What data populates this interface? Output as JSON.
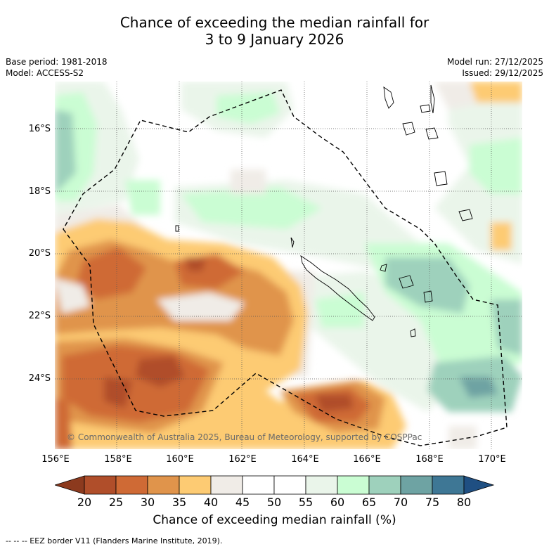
{
  "title": {
    "line1": "Chance of exceeding the median rainfall for",
    "line2": "3 to 9 January 2026"
  },
  "meta": {
    "base_period": "Base period: 1981-2018",
    "model": "Model: ACCESS-S2",
    "model_run": "Model run: 27/12/2025",
    "issued": "Issued: 29/12/2025"
  },
  "map": {
    "lat_labels": [
      "16°S",
      "18°S",
      "20°S",
      "22°S",
      "24°S"
    ],
    "lon_labels": [
      "156°E",
      "158°E",
      "160°E",
      "162°E",
      "164°E",
      "166°E",
      "168°E",
      "170°E"
    ],
    "copyright": "© Commonwealth of Australia 2025, Bureau of Meteorology, supported by COSPPac"
  },
  "colorbar": {
    "ticks": [
      "20",
      "25",
      "30",
      "35",
      "40",
      "45",
      "50",
      "55",
      "60",
      "65",
      "70",
      "75",
      "80"
    ],
    "colors": [
      "#8c3a1e",
      "#b04e2a",
      "#cf6a35",
      "#e0944b",
      "#fdcb73",
      "#f0ece7",
      "#ffffff",
      "#ffffff",
      "#eaf5ea",
      "#cafdd3",
      "#9ed1bc",
      "#6ea3a3",
      "#3e7795",
      "#1f4f82"
    ],
    "title": "Chance of exceeding median rainfall (%)"
  },
  "footnote": "--  --  -- EEZ border V11 (Flanders Marine Institute, 2019)."
}
